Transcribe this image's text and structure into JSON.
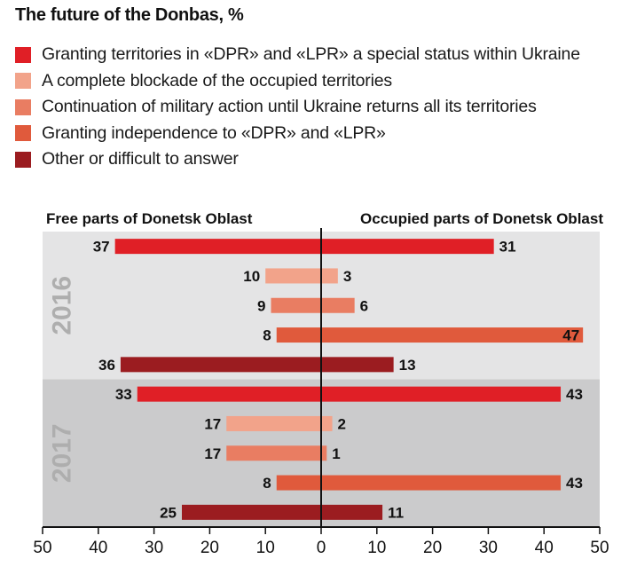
{
  "chart_data": {
    "type": "bar",
    "orientation": "horizontal",
    "title": "The future of the Donbas, %",
    "sides": [
      "Free parts of Donetsk Oblast",
      "Occupied parts of Donetsk Oblast"
    ],
    "categories": [
      "Granting territories in «DPR» and «LPR» a special status within Ukraine",
      "A complete blockade of the occupied territories",
      "Continuation of military action until Ukraine returns all its territories",
      "Granting independence to «DPR» and «LPR»",
      "Other or difficult to answer"
    ],
    "colors": [
      "#e01f26",
      "#f2a38a",
      "#e97d62",
      "#e05a3c",
      "#9b1c20"
    ],
    "groups": [
      {
        "year": "2016",
        "free": [
          37,
          10,
          9,
          8,
          36
        ],
        "occupied": [
          31,
          3,
          6,
          47,
          13
        ]
      },
      {
        "year": "2017",
        "free": [
          33,
          17,
          17,
          8,
          25
        ],
        "occupied": [
          43,
          2,
          1,
          43,
          11
        ]
      }
    ],
    "x_ticks": [
      "50",
      "40",
      "30",
      "20",
      "10",
      "0",
      "10",
      "20",
      "30",
      "40",
      "50"
    ],
    "xlim": [
      -50,
      50
    ],
    "group_background_colors": [
      "#e4e4e5",
      "#cbcbcc"
    ],
    "year_label_color": "#aeaeae"
  }
}
